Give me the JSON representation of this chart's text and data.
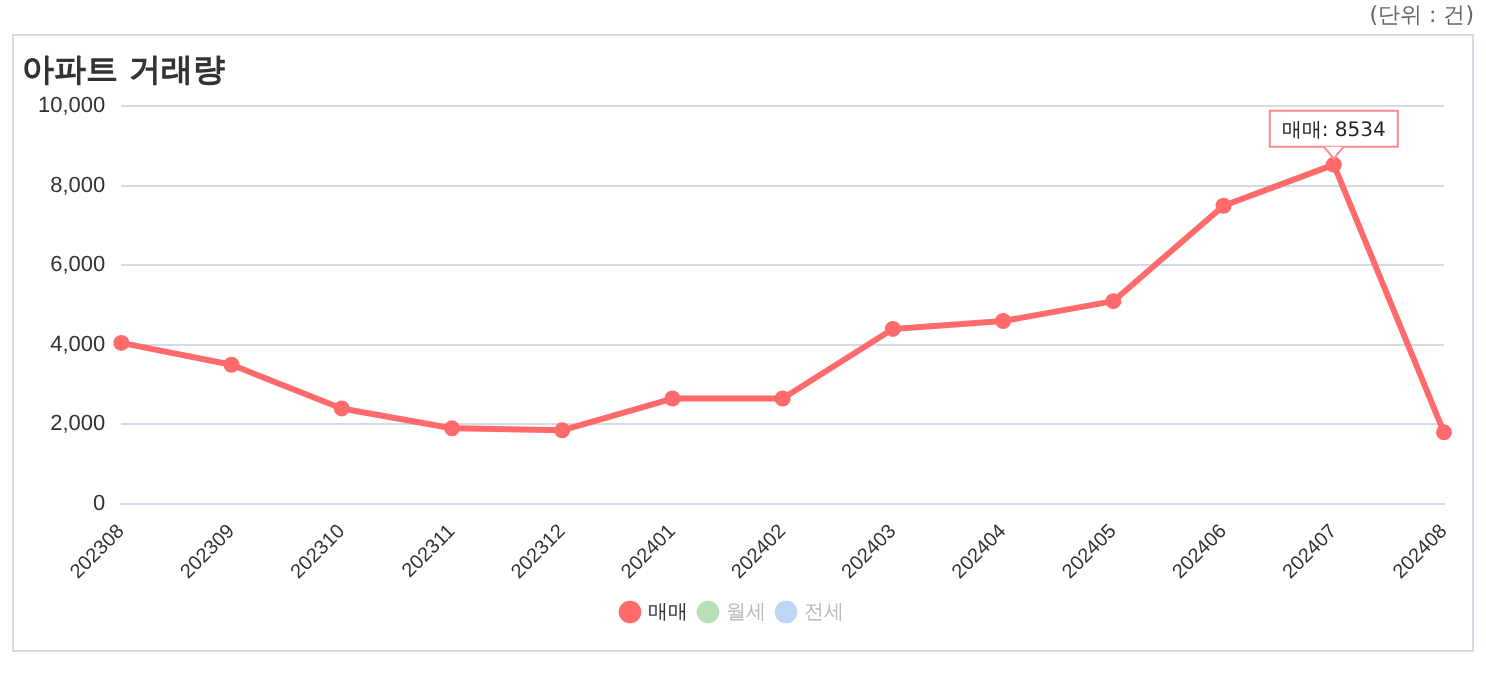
{
  "chart_data": {
    "type": "line",
    "title": "아파트 거래량",
    "categories": [
      "202308",
      "202309",
      "202310",
      "202311",
      "202312",
      "202401",
      "202402",
      "202403",
      "202404",
      "202405",
      "202406",
      "202407",
      "202408"
    ],
    "series": [
      {
        "name": "매매",
        "color": "#ff6b6b",
        "values": [
          4050,
          3500,
          2400,
          1900,
          1850,
          2650,
          2650,
          4400,
          4600,
          5100,
          7500,
          8534,
          1800
        ]
      },
      {
        "name": "월세",
        "color": "#b8dfb8",
        "values": [
          null,
          null,
          null,
          null,
          null,
          null,
          null,
          null,
          null,
          null,
          null,
          null,
          null
        ]
      },
      {
        "name": "전세",
        "color": "#bcd8f5",
        "values": [
          null,
          null,
          null,
          null,
          null,
          null,
          null,
          null,
          null,
          null,
          null,
          null,
          null
        ]
      }
    ],
    "ylim": [
      0,
      10000
    ],
    "yticks": [
      {
        "value": 0,
        "label": "0"
      },
      {
        "value": 2000,
        "label": "2,000"
      },
      {
        "value": 4000,
        "label": "4,000"
      },
      {
        "value": 6000,
        "label": "6,000"
      },
      {
        "value": 8000,
        "label": "8,000"
      },
      {
        "value": 10000,
        "label": "10,000"
      }
    ],
    "grid": "y",
    "legend": "bottom",
    "marker": "circle",
    "line_style": "solid",
    "annotations": [
      "(단위 : 건)",
      {
        "text": "매매: 8534",
        "x": "202407",
        "y": 8534
      }
    ]
  }
}
